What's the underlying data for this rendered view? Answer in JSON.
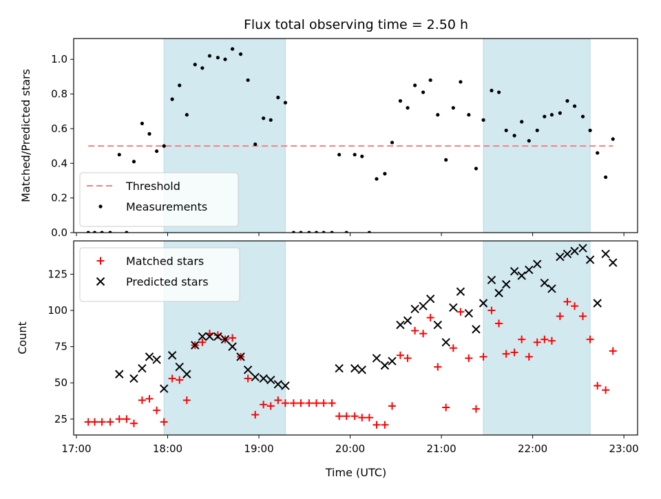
{
  "chart_data": {
    "title": "Flux total observing time = 2.50 h",
    "xlabel": "Time (UTC)",
    "x_ticks": [
      "17:00",
      "18:00",
      "19:00",
      "20:00",
      "21:00",
      "22:00",
      "23:00"
    ],
    "x_range_hours": [
      16.97,
      23.15
    ],
    "shaded_intervals_hours": [
      [
        17.96,
        19.29
      ],
      [
        21.46,
        22.63
      ]
    ],
    "shade_color": "#d2e9f0",
    "panels": [
      {
        "type": "scatter",
        "ylabel": "Matched/Predicted stars",
        "ylim": [
          0,
          1.12
        ],
        "y_ticks": [
          "0.0",
          "0.2",
          "0.4",
          "0.6",
          "0.8",
          "1.0"
        ],
        "y_tick_values": [
          0,
          0.2,
          0.4,
          0.6,
          0.8,
          1.0
        ],
        "legend_position": "lower-left",
        "series": [
          {
            "name": "Threshold",
            "kind": "line",
            "style": "dashed",
            "color": "#f47f7f",
            "x": [
              17.13,
              22.88
            ],
            "y": [
              0.5,
              0.5
            ]
          },
          {
            "name": "Measurements",
            "kind": "points",
            "color": "#000000",
            "x": [
              17.13,
              17.2,
              17.28,
              17.37,
              17.47,
              17.55,
              17.63,
              17.72,
              17.8,
              17.88,
              17.96,
              18.05,
              18.13,
              18.21,
              18.3,
              18.38,
              18.46,
              18.55,
              18.63,
              18.71,
              18.8,
              18.88,
              18.96,
              19.05,
              19.13,
              19.21,
              19.29,
              19.38,
              19.46,
              19.55,
              19.63,
              19.71,
              19.8,
              19.88,
              19.96,
              20.05,
              20.13,
              20.21,
              20.29,
              20.38,
              20.46,
              20.55,
              20.63,
              20.71,
              20.8,
              20.88,
              20.96,
              21.05,
              21.13,
              21.21,
              21.3,
              21.38,
              21.46,
              21.55,
              21.63,
              21.71,
              21.8,
              21.88,
              21.96,
              22.05,
              22.13,
              22.21,
              22.3,
              22.38,
              22.46,
              22.55,
              22.63,
              22.71,
              22.8,
              22.88
            ],
            "y": [
              0,
              0,
              0,
              0,
              0.45,
              0,
              0.41,
              0.63,
              0.57,
              0.47,
              0.5,
              0.77,
              0.85,
              0.68,
              0.97,
              0.95,
              1.02,
              1.01,
              1.0,
              1.06,
              1.03,
              0.88,
              0.51,
              0.66,
              0.65,
              0.78,
              0.75,
              0,
              0,
              0,
              0,
              0,
              0,
              0.45,
              0,
              0.45,
              0.44,
              0,
              0.31,
              0.34,
              0.52,
              0.76,
              0.72,
              0.85,
              0.81,
              0.88,
              0.68,
              0.42,
              0.72,
              0.87,
              0.68,
              0.37,
              0.65,
              0.82,
              0.81,
              0.59,
              0.56,
              0.64,
              0.53,
              0.59,
              0.67,
              0.68,
              0.69,
              0.76,
              0.73,
              0.67,
              0.59,
              0.46,
              0.32,
              0.54
            ]
          }
        ]
      },
      {
        "type": "scatter",
        "ylabel": "Count",
        "ylim": [
          14,
          148
        ],
        "y_ticks": [
          "25",
          "50",
          "75",
          "100",
          "125"
        ],
        "y_tick_values": [
          25,
          50,
          75,
          100,
          125
        ],
        "legend_position": "upper-left",
        "series": [
          {
            "name": "Matched stars",
            "kind": "plus",
            "color": "#ff0000",
            "x": [
              17.13,
              17.2,
              17.28,
              17.37,
              17.47,
              17.55,
              17.63,
              17.72,
              17.8,
              17.88,
              17.96,
              18.05,
              18.13,
              18.21,
              18.3,
              18.38,
              18.46,
              18.55,
              18.63,
              18.71,
              18.8,
              18.88,
              18.96,
              19.05,
              19.13,
              19.21,
              19.29,
              19.38,
              19.46,
              19.55,
              19.63,
              19.71,
              19.8,
              19.88,
              19.96,
              20.05,
              20.13,
              20.21,
              20.29,
              20.38,
              20.46,
              20.55,
              20.63,
              20.71,
              20.8,
              20.88,
              20.96,
              21.05,
              21.13,
              21.21,
              21.3,
              21.38,
              21.46,
              21.55,
              21.63,
              21.71,
              21.8,
              21.88,
              21.96,
              22.05,
              22.13,
              22.21,
              22.3,
              22.38,
              22.46,
              22.55,
              22.63,
              22.71,
              22.8,
              22.88
            ],
            "y": [
              23,
              23,
              23,
              23,
              25,
              25,
              22,
              38,
              39,
              31,
              23,
              53,
              52,
              38,
              76,
              78,
              84,
              83,
              80,
              81,
              68,
              53,
              28,
              35,
              34,
              38,
              36,
              36,
              36,
              36,
              36,
              36,
              36,
              27,
              27,
              27,
              26,
              26,
              21,
              21,
              34,
              69,
              67,
              86,
              84,
              95,
              61,
              33,
              74,
              99,
              67,
              32,
              68,
              100,
              91,
              70,
              71,
              80,
              68,
              78,
              80,
              79,
              96,
              106,
              103,
              96,
              80,
              48,
              45,
              72
            ]
          },
          {
            "name": "Predicted stars",
            "kind": "cross",
            "color": "#000000",
            "x": [
              17.47,
              17.63,
              17.72,
              17.8,
              17.88,
              17.96,
              18.05,
              18.13,
              18.21,
              18.3,
              18.38,
              18.46,
              18.55,
              18.63,
              18.71,
              18.8,
              18.88,
              18.96,
              19.05,
              19.13,
              19.21,
              19.29,
              19.88,
              20.05,
              20.13,
              20.29,
              20.38,
              20.46,
              20.55,
              20.63,
              20.71,
              20.8,
              20.88,
              20.96,
              21.05,
              21.13,
              21.21,
              21.3,
              21.38,
              21.46,
              21.55,
              21.63,
              21.71,
              21.8,
              21.88,
              21.96,
              22.05,
              22.13,
              22.21,
              22.3,
              22.38,
              22.46,
              22.55,
              22.63,
              22.71,
              22.8,
              22.88
            ],
            "y": [
              56,
              53,
              60,
              68,
              66,
              46,
              69,
              61,
              56,
              76,
              82,
              82,
              82,
              80,
              75,
              68,
              59,
              54,
              53,
              52,
              49,
              48,
              60,
              60,
              59,
              67,
              62,
              65,
              90,
              93,
              101,
              103,
              108,
              90,
              78,
              102,
              113,
              98,
              87,
              105,
              121,
              112,
              118,
              127,
              124,
              128,
              132,
              119,
              115,
              137,
              139,
              141,
              143,
              135,
              105,
              139,
              133
            ]
          }
        ]
      }
    ]
  }
}
